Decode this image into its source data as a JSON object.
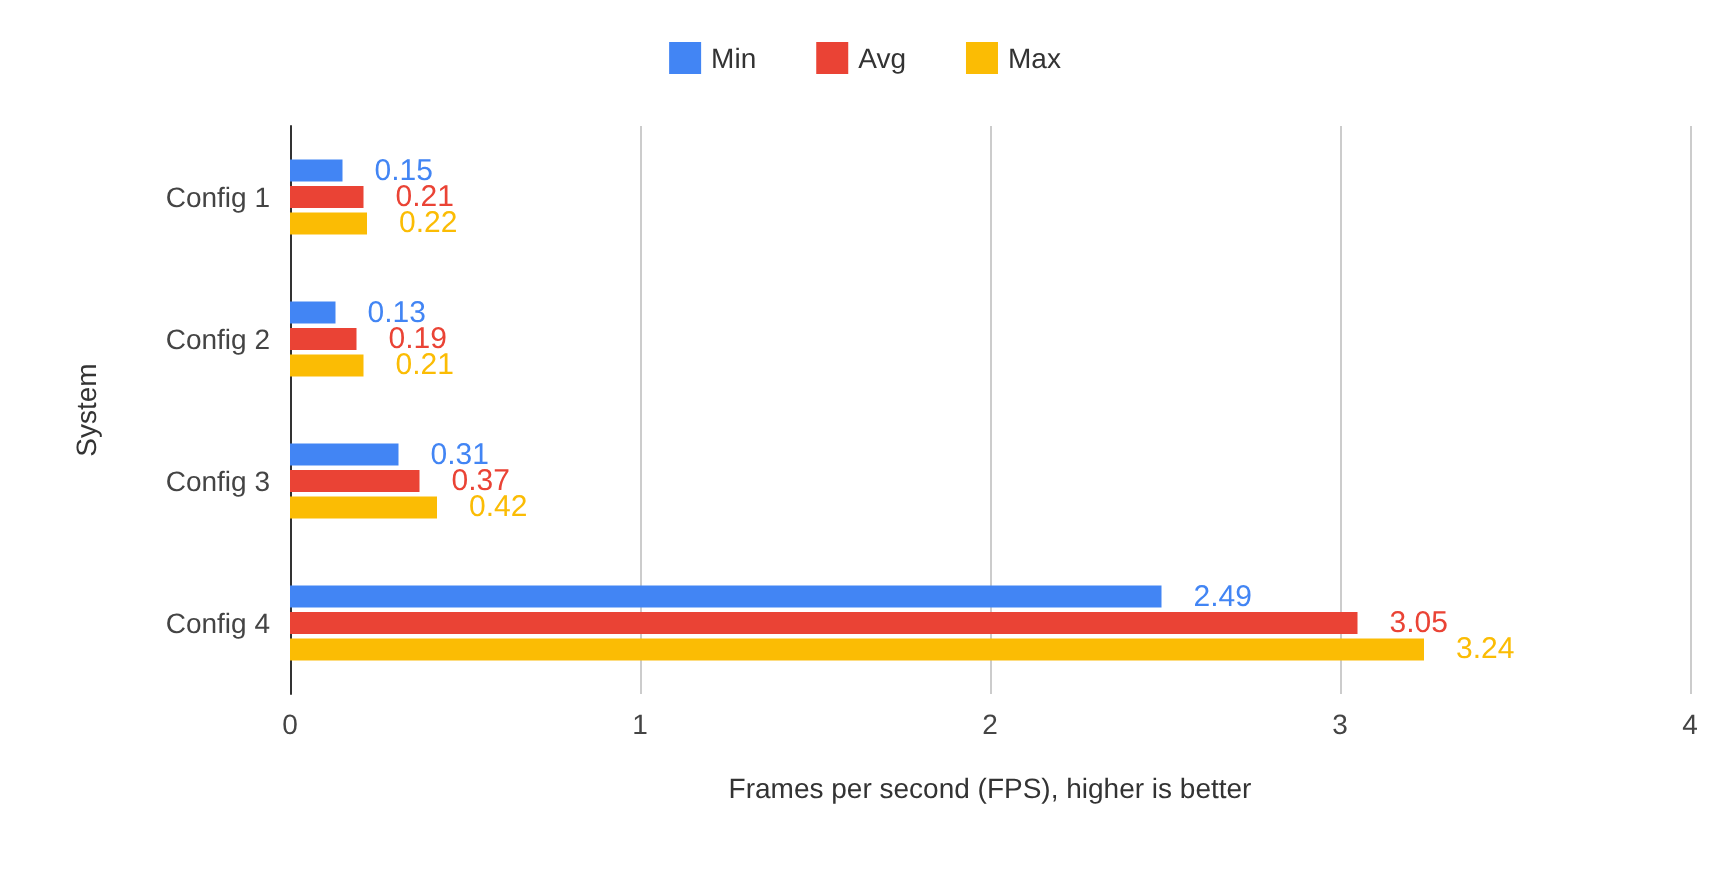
{
  "chart_data": {
    "type": "bar",
    "orientation": "horizontal",
    "xlabel": "Frames per second (FPS), higher is better",
    "ylabel": "System",
    "categories": [
      "Config 1",
      "Config 2",
      "Config 3",
      "Config 4"
    ],
    "series": [
      {
        "name": "Min",
        "color": "#4285f4",
        "values": [
          0.15,
          0.13,
          0.31,
          2.49
        ]
      },
      {
        "name": "Avg",
        "color": "#ea4335",
        "values": [
          0.21,
          0.19,
          0.37,
          3.05
        ]
      },
      {
        "name": "Max",
        "color": "#fbbc04",
        "values": [
          0.22,
          0.21,
          0.42,
          3.24
        ]
      }
    ],
    "xlim": [
      0,
      4
    ],
    "xticks": [
      0,
      1,
      2,
      3,
      4
    ],
    "grid": "x",
    "legend": "top",
    "data_labels": true
  }
}
